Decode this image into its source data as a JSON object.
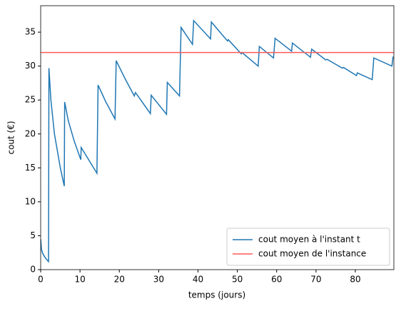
{
  "chart_data": {
    "type": "line",
    "xlabel": "temps (jours)",
    "ylabel": "cout (€)",
    "x": [
      0,
      0.2,
      0.5,
      1,
      1.5,
      2,
      2.1,
      2.6,
      3.5,
      5,
      6,
      6.1,
      7,
      8.5,
      10.2,
      10.3,
      14.3,
      14.6,
      16.5,
      18.9,
      19.2,
      21.5,
      23.8,
      24.1,
      27.9,
      28.1,
      32,
      32.2,
      35.3,
      35.7,
      38.6,
      38.9,
      43.2,
      43.4,
      47.5,
      47.7,
      51,
      51.2,
      55.3,
      55.6,
      59.2,
      59.6,
      63.8,
      64,
      68.6,
      68.9,
      72.5,
      72.8,
      76.7,
      77,
      80.3,
      80.5,
      84.3,
      84.7,
      89.3,
      89.6
    ],
    "series": [
      {
        "name": "cout moyen à l'instant t",
        "color": "#1f77b4",
        "values": [
          4.5,
          3.0,
          2.4,
          1.9,
          1.5,
          1.2,
          29.7,
          25,
          20,
          15,
          12.3,
          24.7,
          22,
          19,
          16.2,
          18,
          14.2,
          27.2,
          24.8,
          22.2,
          30.8,
          28.1,
          25.6,
          26.1,
          23,
          25.7,
          22.9,
          27.6,
          25.6,
          35.7,
          33.2,
          36.7,
          34,
          36.5,
          33.7,
          33.9,
          31.8,
          32,
          30,
          32.9,
          31.2,
          34.1,
          32.2,
          33.4,
          31.3,
          32.5,
          30.9,
          31,
          29.7,
          29.8,
          28.6,
          29,
          28,
          31.2,
          30,
          31.4
        ]
      },
      {
        "name": "cout moyen de l'instance",
        "color": "#ff5a5a",
        "value": 32
      }
    ],
    "xlim": [
      0,
      89.8
    ],
    "ylim": [
      0,
      38.9
    ],
    "xticks": [
      0,
      10,
      20,
      30,
      40,
      50,
      60,
      70,
      80
    ],
    "yticks": [
      0,
      5,
      10,
      15,
      20,
      25,
      30,
      35
    ],
    "legend": "lower right"
  }
}
